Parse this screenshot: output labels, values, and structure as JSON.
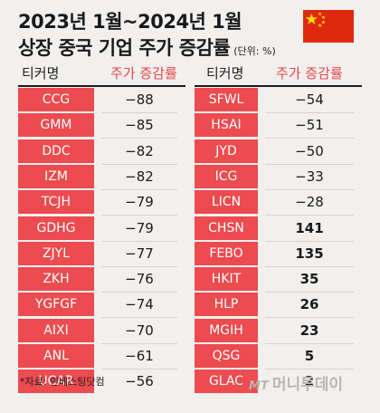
{
  "header": {
    "title_line1": "2023년 1월~2024년 1월",
    "title_line2": "상장 중국 기업 주가 증감률",
    "unit": "(단위: %)"
  },
  "columns": {
    "ticker": "티커명",
    "change": "주가 증감률"
  },
  "chart_data": {
    "type": "table",
    "title": "2023년 1월~2024년 1월 상장 중국 기업 주가 증감률",
    "unit": "(단위: %)",
    "columns": [
      "티커명",
      "주가 증감률"
    ],
    "left": [
      {
        "ticker": "CCG",
        "change": "−88"
      },
      {
        "ticker": "GMM",
        "change": "−85"
      },
      {
        "ticker": "DDC",
        "change": "−82"
      },
      {
        "ticker": "IZM",
        "change": "−82"
      },
      {
        "ticker": "TCJH",
        "change": "−79"
      },
      {
        "ticker": "GDHG",
        "change": "−79"
      },
      {
        "ticker": "ZJYL",
        "change": "−77"
      },
      {
        "ticker": "ZKH",
        "change": "−76"
      },
      {
        "ticker": "YGFGF",
        "change": "−74"
      },
      {
        "ticker": "AIXI",
        "change": "−70"
      },
      {
        "ticker": "ANL",
        "change": "−61"
      },
      {
        "ticker": "UCAR",
        "change": "−56"
      }
    ],
    "right": [
      {
        "ticker": "SFWL",
        "change": "−54"
      },
      {
        "ticker": "HSAI",
        "change": "−51"
      },
      {
        "ticker": "JYD",
        "change": "−50"
      },
      {
        "ticker": "ICG",
        "change": "−33"
      },
      {
        "ticker": "LICN",
        "change": "−28"
      },
      {
        "ticker": "CHSN",
        "change": "141"
      },
      {
        "ticker": "FEBO",
        "change": "135"
      },
      {
        "ticker": "HKIT",
        "change": "35"
      },
      {
        "ticker": "HLP",
        "change": "26"
      },
      {
        "ticker": "MGIH",
        "change": "23"
      },
      {
        "ticker": "QSG",
        "change": "5"
      },
      {
        "ticker": "GLAC",
        "change": "2"
      }
    ]
  },
  "footer": {
    "source": "*자료: 인베스팅닷컴",
    "logo_mt": "MT",
    "logo_text": "머니투데이"
  },
  "colors": {
    "ticker_bg": "#ec4b4f",
    "header_change": "#e8444a",
    "flag_red": "#de2910",
    "flag_star": "#ffde00"
  },
  "icons": {
    "flag": "china-flag-icon"
  }
}
